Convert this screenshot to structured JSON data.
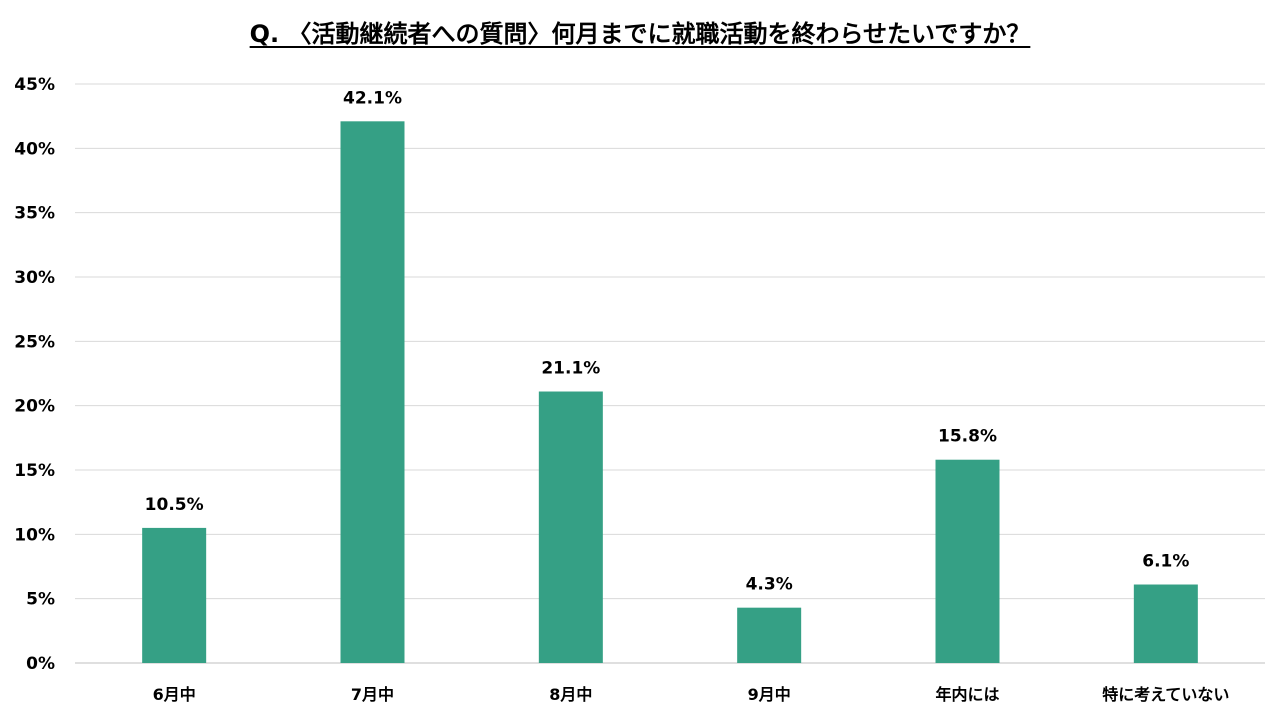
{
  "chart_data": {
    "type": "bar",
    "title": "Q. 〈活動継続者への質問〉何月までに就職活動を終わらせたいですか？",
    "categories": [
      "6月中",
      "7月中",
      "8月中",
      "9月中",
      "年内には",
      "特に考えていない"
    ],
    "values": [
      10.5,
      42.1,
      21.1,
      4.3,
      15.8,
      6.1
    ],
    "data_labels": [
      "10.5%",
      "42.1%",
      "21.1%",
      "4.3%",
      "15.8%",
      "6.1%"
    ],
    "y_ticks": [
      "0%",
      "5%",
      "10%",
      "15%",
      "20%",
      "25%",
      "30%",
      "35%",
      "40%",
      "45%"
    ],
    "ylim": [
      0,
      45
    ],
    "y_step": 5,
    "xlabel": "",
    "ylabel": "",
    "grid": true,
    "legend": "none",
    "bar_color": "#35A085",
    "grid_color": "#D9D9D9"
  }
}
